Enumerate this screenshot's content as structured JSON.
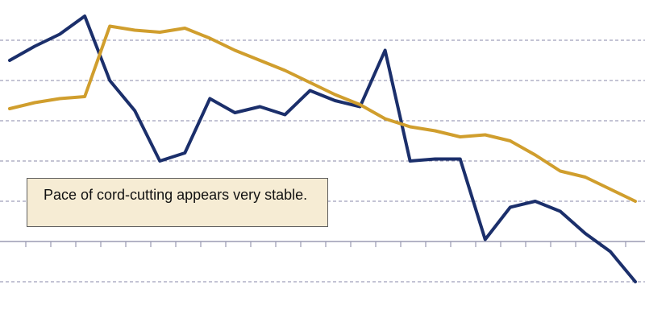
{
  "chart_data": {
    "type": "line",
    "title": "",
    "xlabel": "",
    "ylabel": "",
    "x": [
      1,
      2,
      3,
      4,
      5,
      6,
      7,
      8,
      9,
      10,
      11,
      12,
      13,
      14,
      15,
      16,
      17,
      18,
      19,
      20,
      21,
      22,
      23,
      24,
      25,
      26,
      27,
      28
    ],
    "ylim": [
      0,
      7
    ],
    "gridlines": [
      1,
      2,
      3,
      4,
      5,
      6
    ],
    "grid": true,
    "legend": "none",
    "series": [
      {
        "color": "#1b2f6b",
        "values": [
          5.5,
          5.85,
          6.15,
          6.6,
          5.0,
          4.25,
          3.0,
          3.2,
          4.55,
          4.2,
          4.35,
          4.15,
          4.75,
          4.5,
          4.35,
          5.75,
          3.0,
          3.05,
          3.05,
          1.05,
          1.85,
          2.0,
          1.75,
          1.2,
          0.75,
          0.0
        ],
        "x": [
          1,
          2,
          3,
          4,
          5,
          6,
          7,
          8,
          9,
          10,
          11,
          12,
          13,
          14,
          15,
          16,
          17,
          18,
          19,
          20,
          21,
          22,
          23,
          24,
          25,
          26
        ]
      },
      {
        "color": "#d09e2d",
        "values": [
          4.3,
          4.45,
          4.55,
          4.6,
          6.35,
          6.25,
          6.2,
          6.3,
          6.05,
          5.75,
          5.5,
          5.25,
          4.95,
          4.65,
          4.4,
          4.05,
          3.85,
          3.75,
          3.6,
          3.65,
          3.5,
          3.15,
          2.75,
          2.6,
          2.3,
          2.0
        ],
        "x": [
          1,
          2,
          3,
          4,
          5,
          6,
          7,
          8,
          9,
          10,
          11,
          12,
          13,
          14,
          15,
          16,
          17,
          18,
          19,
          20,
          21,
          22,
          23,
          24,
          25,
          26
        ]
      }
    ],
    "annotation": "Pace of cord-cutting appears very stable."
  }
}
